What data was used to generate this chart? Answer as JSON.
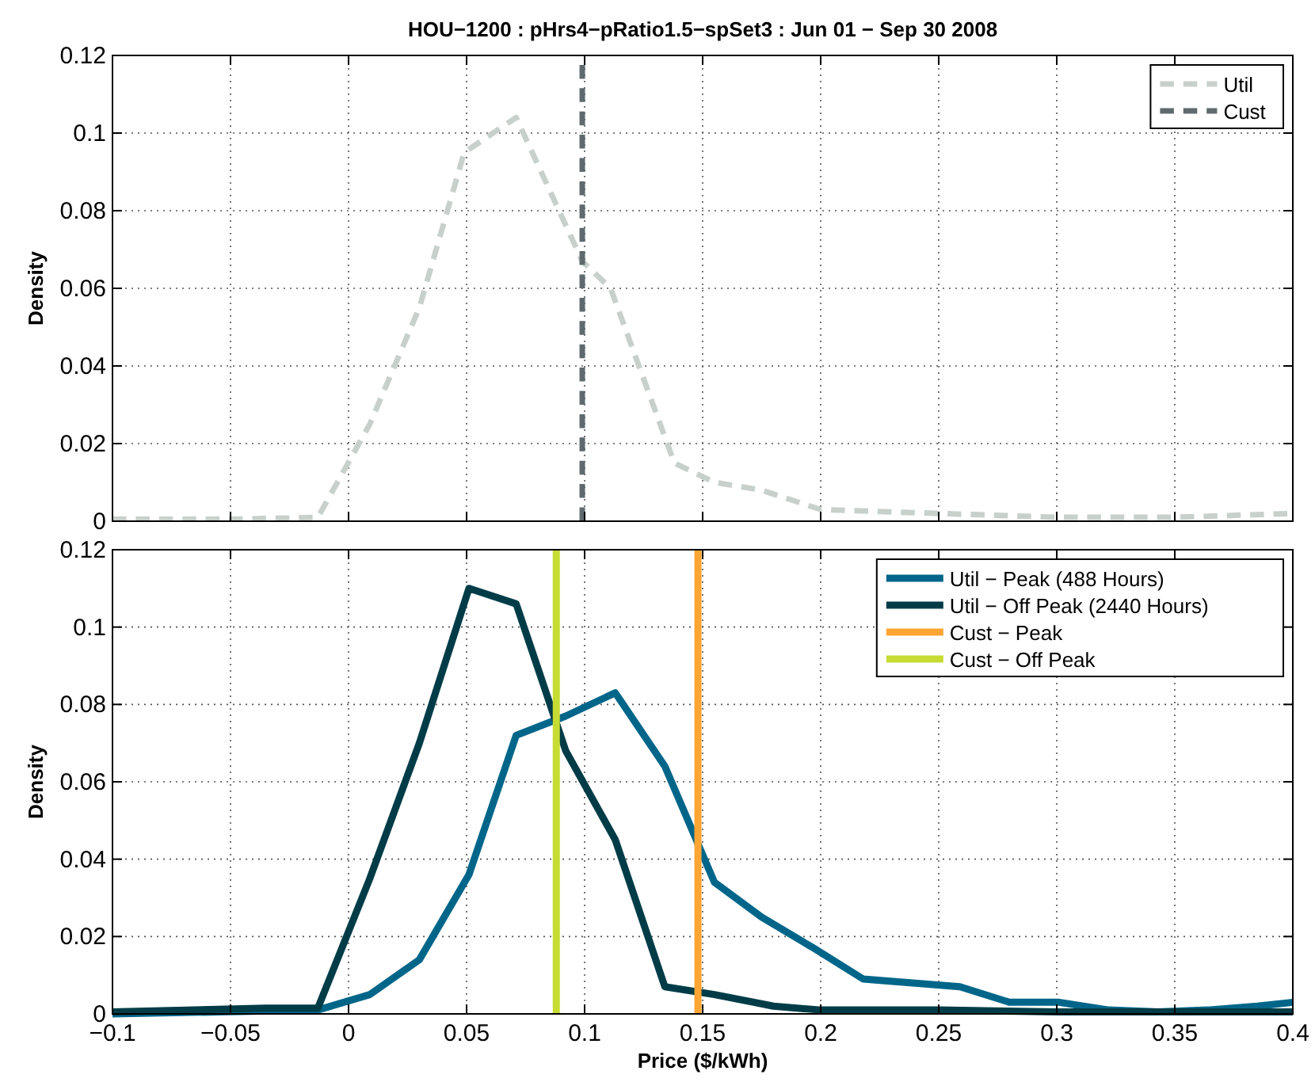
{
  "chart_data": [
    {
      "type": "line",
      "title": "HOU−1200 : pHrs4−pRatio1.5−spSet3 : Jun 01 − Sep 30 2008",
      "ylabel": "Density",
      "xlim": [
        -0.1,
        0.4
      ],
      "xticks": [
        -0.1,
        -0.05,
        0,
        0.05,
        0.1,
        0.15,
        0.2,
        0.25,
        0.3,
        0.35,
        0.4
      ],
      "ylim": [
        0,
        0.12
      ],
      "yticks": [
        0,
        0.02,
        0.04,
        0.06,
        0.08,
        0.1,
        0.12
      ],
      "tick_labels": "y",
      "grid": true,
      "legend": "top right",
      "line_style": "dashed",
      "series": [
        {
          "name": "Util",
          "color": "#c8d0cc",
          "x": [
            -0.1,
            -0.05,
            -0.013,
            0.009,
            0.03,
            0.049,
            0.071,
            0.099,
            0.111,
            0.138,
            0.155,
            0.175,
            0.2,
            0.25,
            0.3,
            0.35,
            0.4
          ],
          "values": [
            0.0005,
            0.0005,
            0.001,
            0.025,
            0.055,
            0.095,
            0.104,
            0.067,
            0.06,
            0.015,
            0.01,
            0.008,
            0.003,
            0.002,
            0.001,
            0.001,
            0.002
          ]
        },
        {
          "name": "Cust",
          "color": "#5f6a6e",
          "x": [
            0.099,
            0.099
          ],
          "values": [
            0,
            0.12
          ]
        }
      ]
    },
    {
      "type": "line",
      "xlabel": "Price ($/kWh)",
      "ylabel": "Density",
      "xlim": [
        -0.1,
        0.4
      ],
      "xticks": [
        -0.1,
        -0.05,
        0,
        0.05,
        0.1,
        0.15,
        0.2,
        0.25,
        0.3,
        0.35,
        0.4
      ],
      "ylim": [
        0,
        0.12
      ],
      "yticks": [
        0,
        0.02,
        0.04,
        0.06,
        0.08,
        0.1,
        0.12
      ],
      "grid": true,
      "legend": "top right",
      "line_style": "solid",
      "series": [
        {
          "name": "Util − Peak (488 Hours)",
          "color": "#006689",
          "x": [
            -0.1,
            -0.013,
            0.009,
            0.03,
            0.051,
            0.071,
            0.092,
            0.113,
            0.134,
            0.155,
            0.175,
            0.197,
            0.218,
            0.239,
            0.259,
            0.28,
            0.301,
            0.322,
            0.343,
            0.364,
            0.385,
            0.4
          ],
          "values": [
            0,
            0.001,
            0.005,
            0.014,
            0.036,
            0.072,
            0.077,
            0.083,
            0.064,
            0.034,
            0.025,
            0.017,
            0.009,
            0.008,
            0.007,
            0.003,
            0.003,
            0.001,
            0.0005,
            0.001,
            0.002,
            0.003
          ]
        },
        {
          "name": "Util − Off Peak (2440 Hours)",
          "color": "#003c47",
          "x": [
            -0.1,
            -0.035,
            -0.013,
            0.009,
            0.03,
            0.051,
            0.071,
            0.092,
            0.113,
            0.134,
            0.155,
            0.18,
            0.2,
            0.25,
            0.3,
            0.35,
            0.4
          ],
          "values": [
            0.0005,
            0.0015,
            0.0015,
            0.035,
            0.07,
            0.11,
            0.106,
            0.068,
            0.045,
            0.007,
            0.005,
            0.002,
            0.001,
            0.001,
            0.0005,
            0.0005,
            0.0005
          ]
        },
        {
          "name": "Cust − Peak",
          "color": "#ffa533",
          "x": [
            0.148,
            0.148
          ],
          "values": [
            0,
            0.12
          ]
        },
        {
          "name": "Cust − Off Peak",
          "color": "#c6dc33",
          "x": [
            0.088,
            0.088
          ],
          "values": [
            0,
            0.12
          ]
        }
      ]
    }
  ]
}
